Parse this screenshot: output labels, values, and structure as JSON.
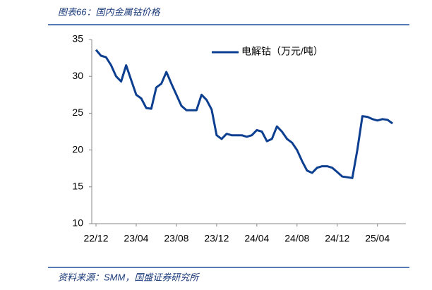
{
  "chart_data": {
    "type": "line",
    "title": "图表66：国内金属钴价格",
    "source": "资料来源：SMM，国盛证券研究所",
    "categories": [
      "22/12",
      null,
      null,
      null,
      null,
      null,
      null,
      null,
      "23/04",
      null,
      null,
      null,
      null,
      null,
      null,
      null,
      "23/08",
      null,
      null,
      null,
      null,
      null,
      null,
      null,
      "23/12",
      null,
      null,
      null,
      null,
      null,
      null,
      null,
      "24/04",
      null,
      null,
      null,
      null,
      null,
      null,
      null,
      "24/08",
      null,
      null,
      null,
      null,
      null,
      null,
      null,
      "24/12",
      null,
      null,
      null,
      null,
      null,
      null,
      null,
      "25/04",
      null,
      null,
      null
    ],
    "series": [
      {
        "name": "电解钴（万元/吨）",
        "color": "#0d3f91",
        "values": [
          33.6,
          32.8,
          32.6,
          31.5,
          30.0,
          29.3,
          31.5,
          29.5,
          27.5,
          27.0,
          25.7,
          25.6,
          28.5,
          29.0,
          30.6,
          29.0,
          27.5,
          26.0,
          25.4,
          25.4,
          25.4,
          27.5,
          26.8,
          25.5,
          22.0,
          21.5,
          22.2,
          22.0,
          22.0,
          22.0,
          21.8,
          22.0,
          22.7,
          22.5,
          21.2,
          21.5,
          23.2,
          22.5,
          21.5,
          21.0,
          20.0,
          18.5,
          17.2,
          16.9,
          17.6,
          17.8,
          17.8,
          17.6,
          17.0,
          16.4,
          16.3,
          16.2,
          20.0,
          24.6,
          24.5,
          24.2,
          24.0,
          24.2,
          24.1,
          23.6
        ]
      }
    ],
    "ylim": [
      10,
      35
    ],
    "yticks": [
      10,
      15,
      20,
      25,
      30,
      35
    ],
    "legend": "upper right"
  }
}
